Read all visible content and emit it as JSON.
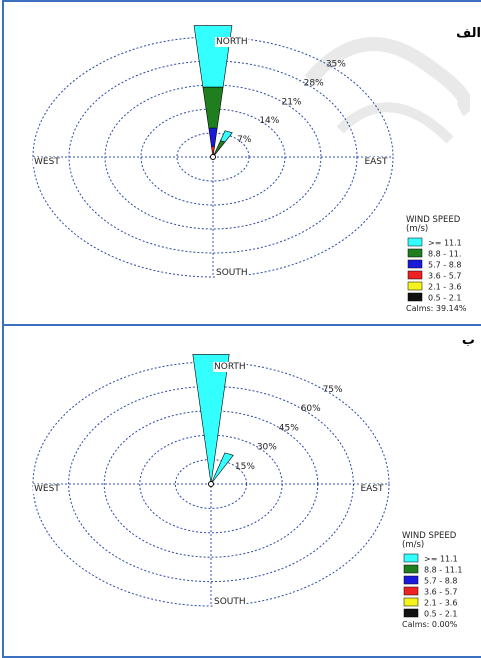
{
  "chart_data": [
    {
      "type": "windrose",
      "panel_label": "الف",
      "directions": [
        "NORTH",
        "EAST",
        "SOUTH",
        "WEST"
      ],
      "ring_labels": [
        "7%",
        "14%",
        "21%",
        "28%",
        "35%"
      ],
      "ring_values": [
        7,
        14,
        21,
        28,
        35
      ],
      "max_ring": 35,
      "sector_width_deg": 11,
      "petals": [
        {
          "direction_deg": 0,
          "segments": [
            0.5,
            2.5,
            5.5,
            12,
            18
          ]
        },
        {
          "direction_deg": 22.5,
          "segments": [
            0,
            0,
            1,
            4,
            3
          ]
        },
        {
          "direction_deg": 157.5,
          "segments": [
            0.6,
            0,
            0,
            0,
            0
          ]
        },
        {
          "direction_deg": 337.5,
          "segments": [
            0.7,
            0,
            0,
            0,
            0
          ]
        }
      ],
      "legend": {
        "title_line1": "WIND SPEED",
        "title_line2": "(m/s)",
        "items": [
          {
            "label": ">= 11.1",
            "color": "#33ffff"
          },
          {
            "label": "8.8 - 11.",
            "color": "#1f7f1f"
          },
          {
            "label": "5.7 - 8.8",
            "color": "#1a1adb"
          },
          {
            "label": "3.6 - 5.7",
            "color": "#ee2222"
          },
          {
            "label": "2.1 - 3.6",
            "color": "#f4f41c"
          },
          {
            "label": "0.5 - 2.1",
            "color": "#111111"
          }
        ],
        "calms": "Calms: 39.14%"
      }
    },
    {
      "type": "windrose",
      "panel_label": "ب",
      "directions": [
        "NORTH",
        "EAST",
        "SOUTH",
        "WEST"
      ],
      "ring_labels": [
        "15%",
        "30%",
        "45%",
        "60%",
        "75%"
      ],
      "ring_values": [
        15,
        30,
        45,
        60,
        75
      ],
      "max_ring": 75,
      "sector_width_deg": 11,
      "petals": [
        {
          "direction_deg": 0,
          "segments": [
            0,
            0,
            0,
            0,
            80
          ]
        },
        {
          "direction_deg": 22.5,
          "segments": [
            0,
            0,
            0,
            0,
            20
          ]
        }
      ],
      "legend": {
        "title_line1": "WIND SPEED",
        "title_line2": "(m/s)",
        "items": [
          {
            "label": ">= 11.1",
            "color": "#33ffff"
          },
          {
            "label": "8.8 - 11.1",
            "color": "#1f7f1f"
          },
          {
            "label": "5.7 - 8.8",
            "color": "#1a1adb"
          },
          {
            "label": "3.6 - 5.7",
            "color": "#ee2222"
          },
          {
            "label": "2.1 - 3.6",
            "color": "#f4f41c"
          },
          {
            "label": "0.5 - 2.1",
            "color": "#111111"
          }
        ],
        "calms": "Calms: 0.00%"
      }
    }
  ],
  "segment_colors": [
    "#111111",
    "#ee2222",
    "#1a1adb",
    "#1f7f1f",
    "#33ffff"
  ]
}
